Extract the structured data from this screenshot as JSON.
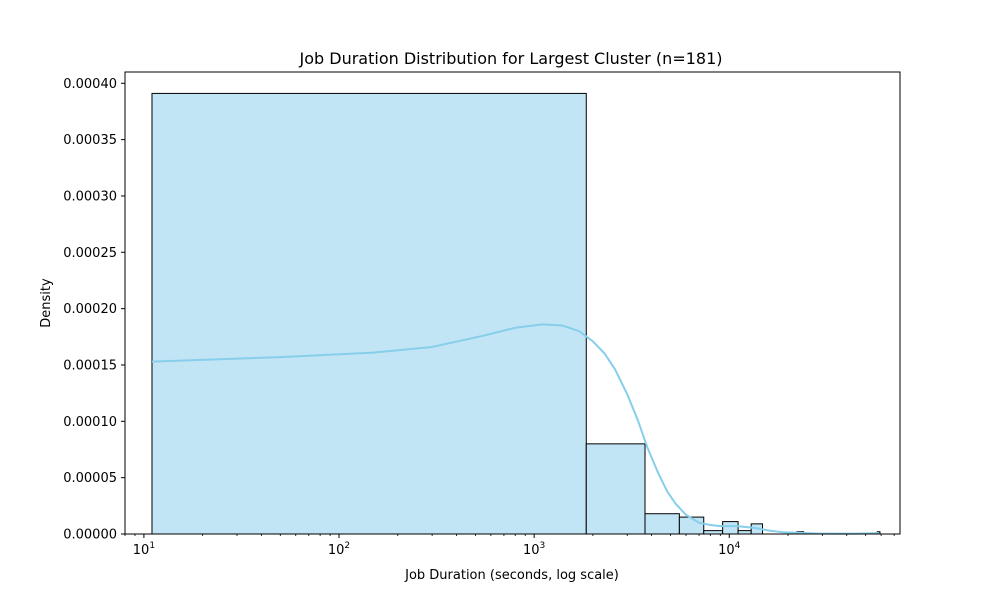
{
  "chart_data": {
    "type": "bar",
    "title": "Job Duration Distribution for Largest Cluster (n=181)",
    "xlabel": "Job Duration (seconds, log scale)",
    "ylabel": "Density",
    "x_scale": "log",
    "xlim": [
      8,
      75000
    ],
    "ylim": [
      0,
      0.00041
    ],
    "x_ticks": [
      {
        "value": 10,
        "base": "10",
        "exp": "1"
      },
      {
        "value": 100,
        "base": "10",
        "exp": "2"
      },
      {
        "value": 1000,
        "base": "10",
        "exp": "3"
      },
      {
        "value": 10000,
        "base": "10",
        "exp": "4"
      }
    ],
    "y_ticks": [
      {
        "value": 0,
        "label": "0.00000"
      },
      {
        "value": 5e-05,
        "label": "0.00005"
      },
      {
        "value": 0.0001,
        "label": "0.00010"
      },
      {
        "value": 0.00015,
        "label": "0.00015"
      },
      {
        "value": 0.0002,
        "label": "0.00020"
      },
      {
        "value": 0.00025,
        "label": "0.00025"
      },
      {
        "value": 0.0003,
        "label": "0.00030"
      },
      {
        "value": 0.00035,
        "label": "0.00035"
      },
      {
        "value": 0.0004,
        "label": "0.00040"
      }
    ],
    "grid": false,
    "bar_color": "#c2e5f5",
    "bar_edge_color": "#000000",
    "kde_color": "#87ceeb",
    "bins": [
      {
        "x0": 11,
        "x1": 1850,
        "density": 0.000391
      },
      {
        "x0": 1850,
        "x1": 3700,
        "density": 8e-05
      },
      {
        "x0": 3700,
        "x1": 5550,
        "density": 1.8e-05
      },
      {
        "x0": 5550,
        "x1": 7400,
        "density": 1.5e-05
      },
      {
        "x0": 7400,
        "x1": 9250,
        "density": 3e-06
      },
      {
        "x0": 9250,
        "x1": 11100,
        "density": 1.1e-05
      },
      {
        "x0": 11100,
        "x1": 12950,
        "density": 3e-06
      },
      {
        "x0": 12950,
        "x1": 14800,
        "density": 9e-06
      },
      {
        "x0": 14800,
        "x1": 16650,
        "density": 0
      },
      {
        "x0": 22200,
        "x1": 24050,
        "density": 2e-06
      },
      {
        "x0": 57350,
        "x1": 59200,
        "density": 2e-06
      }
    ],
    "kde": {
      "x": [
        11,
        50,
        150,
        300,
        550,
        800,
        1100,
        1400,
        1700,
        2000,
        2300,
        2600,
        3000,
        3400,
        3800,
        4300,
        4800,
        5300,
        6000,
        7000,
        8000,
        9000,
        10000,
        11000,
        12500,
        14000,
        16000,
        19000,
        23000,
        28000,
        35000,
        45000,
        58000
      ],
      "y": [
        0.000153,
        0.000157,
        0.000161,
        0.000166,
        0.000176,
        0.000183,
        0.000186,
        0.000185,
        0.00018,
        0.000171,
        0.00016,
        0.000146,
        0.000124,
        0.000101,
        7.7e-05,
        5.5e-05,
        3.8e-05,
        2.7e-05,
        1.7e-05,
        1e-05,
        8e-06,
        7e-06,
        7e-06,
        7e-06,
        6e-06,
        5e-06,
        3e-06,
        1.5e-06,
        1e-06,
        5e-07,
        3e-07,
        3e-07,
        8e-07
      ]
    }
  }
}
